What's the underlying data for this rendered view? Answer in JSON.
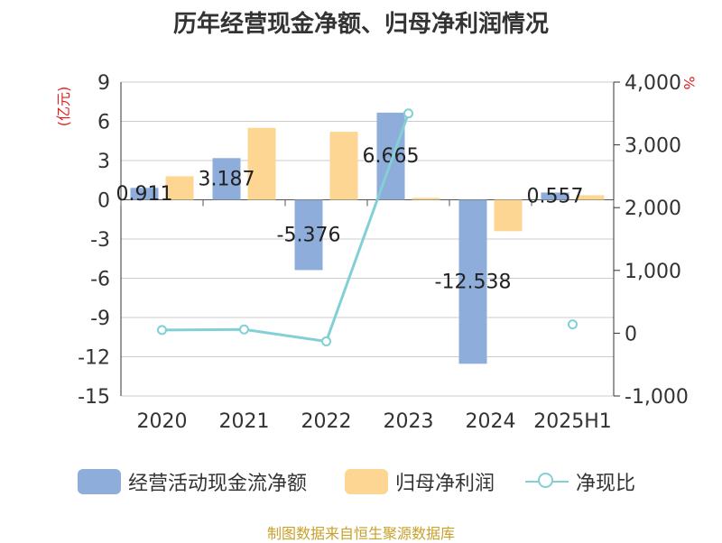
{
  "title": "历年经营现金净额、归母净利润情况",
  "source_text": "制图数据来自恒生聚源数据库",
  "chart_data": {
    "type": "bar",
    "categories": [
      "2020",
      "2021",
      "2022",
      "2023",
      "2024",
      "2025H1"
    ],
    "series": [
      {
        "name": "经营活动现金流净额",
        "type": "bar",
        "axis": "left",
        "color": "#8eadda",
        "values": [
          0.911,
          3.187,
          -5.376,
          6.665,
          -12.538,
          0.557
        ],
        "labels": [
          "0.911",
          "3.187",
          "-5.376",
          "6.665",
          "-12.538",
          "0.557"
        ]
      },
      {
        "name": "归母净利润",
        "type": "bar",
        "axis": "left",
        "color": "#fdd694",
        "values": [
          1.8,
          5.5,
          5.2,
          0.15,
          -2.4,
          0.35
        ]
      },
      {
        "name": "净现比",
        "type": "line",
        "axis": "right",
        "color": "#82d0d6",
        "values": [
          50,
          60,
          -130,
          3500,
          null,
          140
        ]
      }
    ],
    "left_axis": {
      "label": "(亿元)",
      "min": -15,
      "max": 9,
      "step": 3,
      "ticks": [
        "9",
        "6",
        "3",
        "0",
        "-3",
        "-6",
        "-9",
        "-12",
        "-15"
      ]
    },
    "right_axis": {
      "label": "%",
      "min": -1000,
      "max": 4000,
      "step": 1000,
      "ticks": [
        "4,000",
        "3,000",
        "2,000",
        "1,000",
        "0",
        "-1,000"
      ]
    },
    "grid": true,
    "legend_position": "bottom"
  }
}
